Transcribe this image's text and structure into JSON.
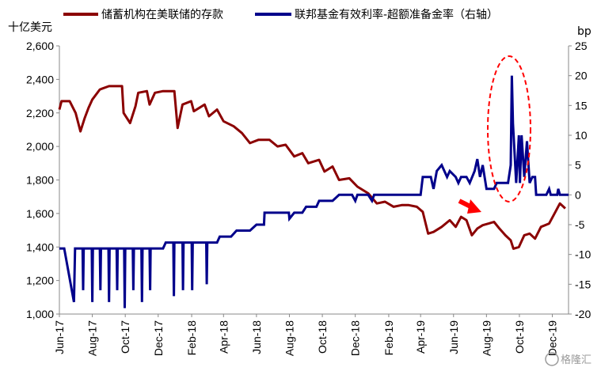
{
  "watermark": "格隆汇",
  "chart_data": {
    "type": "line",
    "legend_position": "top",
    "grid": false,
    "left_axis": {
      "unit_label": "十亿美元",
      "ylim": [
        1000,
        2600
      ],
      "ticks": [
        "1,000",
        "1,200",
        "1,400",
        "1,600",
        "1,800",
        "2,000",
        "2,200",
        "2,400",
        "2,600"
      ]
    },
    "right_axis": {
      "unit_label": "bp",
      "ylim": [
        -20,
        25
      ],
      "ticks": [
        "-20",
        "-15",
        "-10",
        "-5",
        "0",
        "5",
        "10",
        "15",
        "20",
        "25"
      ]
    },
    "x_axis": {
      "range": [
        "2017-06-01",
        "2019-12-31"
      ],
      "ticks": [
        "Jun-17",
        "Aug-17",
        "Oct-17",
        "Dec-17",
        "Feb-18",
        "Apr-18",
        "Jun-18",
        "Aug-18",
        "Oct-18",
        "Dec-18",
        "Feb-19",
        "Apr-19",
        "Jun-19",
        "Aug-19",
        "Oct-19",
        "Dec-19"
      ]
    },
    "series": [
      {
        "name": "储蓄机构在美联储的存款",
        "axis": "left",
        "color": "#8B0000",
        "points": [
          [
            "2017-06-01",
            2220
          ],
          [
            "2017-06-05",
            2270
          ],
          [
            "2017-06-20",
            2270
          ],
          [
            "2017-07-01",
            2200
          ],
          [
            "2017-07-10",
            2090
          ],
          [
            "2017-07-18",
            2170
          ],
          [
            "2017-07-25",
            2230
          ],
          [
            "2017-08-01",
            2280
          ],
          [
            "2017-08-15",
            2340
          ],
          [
            "2017-09-01",
            2360
          ],
          [
            "2017-09-25",
            2360
          ],
          [
            "2017-09-28",
            2200
          ],
          [
            "2017-10-10",
            2140
          ],
          [
            "2017-10-20",
            2240
          ],
          [
            "2017-10-25",
            2320
          ],
          [
            "2017-11-10",
            2330
          ],
          [
            "2017-11-15",
            2250
          ],
          [
            "2017-11-25",
            2320
          ],
          [
            "2017-12-10",
            2330
          ],
          [
            "2017-12-31",
            2330
          ],
          [
            "2018-01-06",
            2110
          ],
          [
            "2018-01-15",
            2250
          ],
          [
            "2018-01-31",
            2270
          ],
          [
            "2018-02-05",
            2210
          ],
          [
            "2018-02-25",
            2250
          ],
          [
            "2018-03-05",
            2180
          ],
          [
            "2018-03-20",
            2220
          ],
          [
            "2018-04-01",
            2150
          ],
          [
            "2018-04-20",
            2120
          ],
          [
            "2018-05-05",
            2080
          ],
          [
            "2018-05-20",
            2020
          ],
          [
            "2018-06-05",
            2040
          ],
          [
            "2018-06-25",
            2040
          ],
          [
            "2018-07-10",
            2000
          ],
          [
            "2018-07-25",
            2010
          ],
          [
            "2018-08-10",
            1940
          ],
          [
            "2018-08-25",
            1960
          ],
          [
            "2018-09-05",
            1900
          ],
          [
            "2018-09-25",
            1920
          ],
          [
            "2018-10-05",
            1850
          ],
          [
            "2018-10-20",
            1880
          ],
          [
            "2018-11-01",
            1800
          ],
          [
            "2018-11-20",
            1810
          ],
          [
            "2018-12-05",
            1760
          ],
          [
            "2018-12-25",
            1720
          ],
          [
            "2019-01-10",
            1660
          ],
          [
            "2019-01-25",
            1670
          ],
          [
            "2019-02-10",
            1640
          ],
          [
            "2019-02-25",
            1650
          ],
          [
            "2019-03-10",
            1650
          ],
          [
            "2019-03-25",
            1640
          ],
          [
            "2019-04-05",
            1610
          ],
          [
            "2019-04-15",
            1480
          ],
          [
            "2019-04-25",
            1490
          ],
          [
            "2019-05-10",
            1520
          ],
          [
            "2019-05-25",
            1560
          ],
          [
            "2019-06-05",
            1520
          ],
          [
            "2019-06-15",
            1580
          ],
          [
            "2019-06-25",
            1560
          ],
          [
            "2019-07-05",
            1470
          ],
          [
            "2019-07-15",
            1510
          ],
          [
            "2019-07-25",
            1530
          ],
          [
            "2019-08-05",
            1540
          ],
          [
            "2019-08-15",
            1550
          ],
          [
            "2019-08-25",
            1510
          ],
          [
            "2019-09-05",
            1470
          ],
          [
            "2019-09-15",
            1440
          ],
          [
            "2019-09-20",
            1390
          ],
          [
            "2019-09-30",
            1400
          ],
          [
            "2019-10-10",
            1470
          ],
          [
            "2019-10-20",
            1480
          ],
          [
            "2019-10-30",
            1450
          ],
          [
            "2019-11-10",
            1520
          ],
          [
            "2019-11-25",
            1540
          ],
          [
            "2019-12-05",
            1600
          ],
          [
            "2019-12-15",
            1660
          ],
          [
            "2019-12-25",
            1630
          ]
        ]
      },
      {
        "name": "联邦基金有效利率-超额准备金率（右轴）",
        "axis": "right",
        "color": "#00008B",
        "points": [
          [
            "2017-06-01",
            -9
          ],
          [
            "2017-06-10",
            -9
          ],
          [
            "2017-06-28",
            -18
          ],
          [
            "2017-06-30",
            -9
          ],
          [
            "2017-07-14",
            -9
          ],
          [
            "2017-07-15",
            -16
          ],
          [
            "2017-07-16",
            -9
          ],
          [
            "2017-07-31",
            -9
          ],
          [
            "2017-08-01",
            -18
          ],
          [
            "2017-08-02",
            -9
          ],
          [
            "2017-08-15",
            -9
          ],
          [
            "2017-08-16",
            -16
          ],
          [
            "2017-08-17",
            -9
          ],
          [
            "2017-08-31",
            -9
          ],
          [
            "2017-09-01",
            -18
          ],
          [
            "2017-09-02",
            -9
          ],
          [
            "2017-09-15",
            -9
          ],
          [
            "2017-09-16",
            -16
          ],
          [
            "2017-09-17",
            -9
          ],
          [
            "2017-09-29",
            -9
          ],
          [
            "2017-09-30",
            -19
          ],
          [
            "2017-10-01",
            -9
          ],
          [
            "2017-10-15",
            -9
          ],
          [
            "2017-10-16",
            -16
          ],
          [
            "2017-10-17",
            -9
          ],
          [
            "2017-10-31",
            -9
          ],
          [
            "2017-11-01",
            -18
          ],
          [
            "2017-11-02",
            -9
          ],
          [
            "2017-11-15",
            -9
          ],
          [
            "2017-11-16",
            -16
          ],
          [
            "2017-11-17",
            -9
          ],
          [
            "2017-12-10",
            -9
          ],
          [
            "2017-12-15",
            -8
          ],
          [
            "2017-12-29",
            -8
          ],
          [
            "2017-12-30",
            -17
          ],
          [
            "2017-12-31",
            -8
          ],
          [
            "2018-01-15",
            -8
          ],
          [
            "2018-01-16",
            -16
          ],
          [
            "2018-01-17",
            -8
          ],
          [
            "2018-02-01",
            -8
          ],
          [
            "2018-02-02",
            -16
          ],
          [
            "2018-02-03",
            -8
          ],
          [
            "2018-02-28",
            -8
          ],
          [
            "2018-03-01",
            -15
          ],
          [
            "2018-03-02",
            -8
          ],
          [
            "2018-03-20",
            -8
          ],
          [
            "2018-03-25",
            -7
          ],
          [
            "2018-04-15",
            -7
          ],
          [
            "2018-04-25",
            -6
          ],
          [
            "2018-05-20",
            -6
          ],
          [
            "2018-06-01",
            -5
          ],
          [
            "2018-06-15",
            -5
          ],
          [
            "2018-06-16",
            -3
          ],
          [
            "2018-07-31",
            -3
          ],
          [
            "2018-08-01",
            -4
          ],
          [
            "2018-08-10",
            -3
          ],
          [
            "2018-08-25",
            -3
          ],
          [
            "2018-09-01",
            -2
          ],
          [
            "2018-09-20",
            -2
          ],
          [
            "2018-09-25",
            -1
          ],
          [
            "2018-10-20",
            -1
          ],
          [
            "2018-11-01",
            0
          ],
          [
            "2018-11-25",
            0
          ],
          [
            "2018-12-01",
            -1
          ],
          [
            "2018-12-05",
            0
          ],
          [
            "2018-12-25",
            0
          ],
          [
            "2019-01-01",
            -1
          ],
          [
            "2019-01-05",
            0
          ],
          [
            "2019-04-01",
            0
          ],
          [
            "2019-04-05",
            3
          ],
          [
            "2019-04-20",
            3
          ],
          [
            "2019-04-25",
            1
          ],
          [
            "2019-05-01",
            4
          ],
          [
            "2019-05-10",
            5
          ],
          [
            "2019-05-20",
            3
          ],
          [
            "2019-05-25",
            4
          ],
          [
            "2019-06-05",
            3
          ],
          [
            "2019-06-10",
            2
          ],
          [
            "2019-06-15",
            3
          ],
          [
            "2019-06-25",
            3
          ],
          [
            "2019-07-01",
            2
          ],
          [
            "2019-07-10",
            4
          ],
          [
            "2019-07-15",
            6
          ],
          [
            "2019-07-20",
            3
          ],
          [
            "2019-07-25",
            5
          ],
          [
            "2019-08-01",
            1
          ],
          [
            "2019-08-15",
            1
          ],
          [
            "2019-08-20",
            2
          ],
          [
            "2019-08-30",
            2
          ],
          [
            "2019-09-10",
            2
          ],
          [
            "2019-09-15",
            5
          ],
          [
            "2019-09-17",
            20
          ],
          [
            "2019-09-19",
            12
          ],
          [
            "2019-09-25",
            2
          ],
          [
            "2019-09-30",
            10
          ],
          [
            "2019-10-02",
            2
          ],
          [
            "2019-10-05",
            10
          ],
          [
            "2019-10-10",
            3
          ],
          [
            "2019-10-15",
            9
          ],
          [
            "2019-10-20",
            2
          ],
          [
            "2019-10-25",
            3
          ],
          [
            "2019-10-30",
            3
          ],
          [
            "2019-11-01",
            0
          ],
          [
            "2019-11-20",
            0
          ],
          [
            "2019-11-25",
            1
          ],
          [
            "2019-11-28",
            0
          ],
          [
            "2019-12-10",
            0
          ],
          [
            "2019-12-12",
            1
          ],
          [
            "2019-12-15",
            0
          ],
          [
            "2019-12-31",
            0
          ]
        ]
      }
    ],
    "annotations": [
      "red dashed ellipse around Sep-Oct 2019 spike",
      "red arrow pointing down-right near Jun-19"
    ]
  }
}
